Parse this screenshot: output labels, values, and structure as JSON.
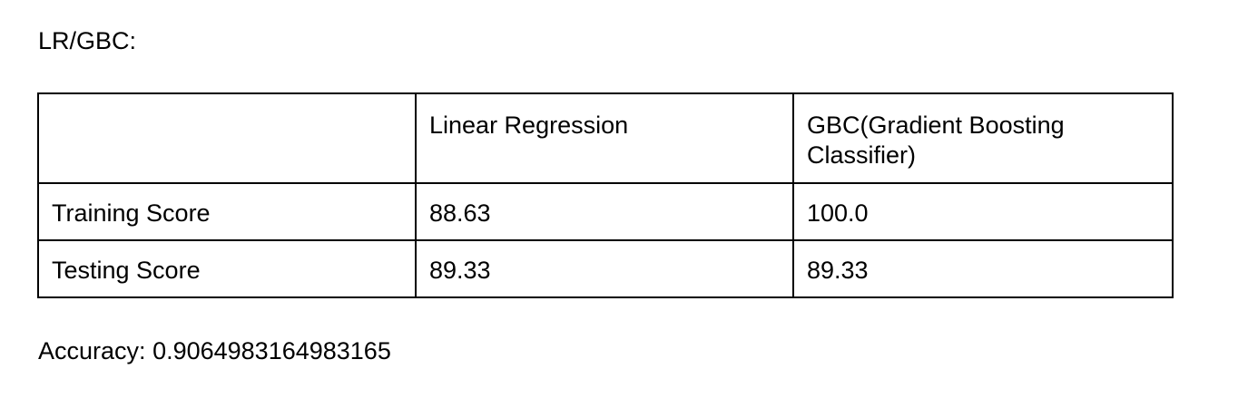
{
  "document": {
    "heading": "LR/GBC:",
    "table": {
      "header": [
        "",
        "Linear Regression",
        "GBC(Gradient Boosting Classifier)"
      ],
      "rows": [
        {
          "label": "Training Score",
          "values": [
            "88.63",
            "100.0"
          ]
        },
        {
          "label": "Testing Score",
          "values": [
            "89.33",
            "89.33"
          ]
        }
      ]
    },
    "accuracy_label": "Accuracy:",
    "accuracy_value": "0.9064983164983165"
  }
}
